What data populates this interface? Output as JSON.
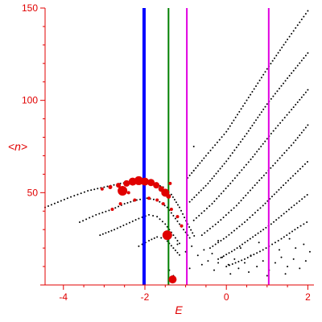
{
  "chart_data": {
    "type": "scatter",
    "xlabel": "E",
    "ylabel": "<n>",
    "xlim": [
      -4.45,
      2.15
    ],
    "ylim": [
      0,
      150
    ],
    "x_ticks": [
      -4,
      -2,
      0,
      2
    ],
    "y_ticks": [
      50,
      100,
      150
    ],
    "grid": false,
    "colors": {
      "axis": "#e00000",
      "dots": "#000000",
      "highlight": "#e00000"
    },
    "vertical_lines": [
      {
        "x": -2.02,
        "color": "#0000ff",
        "width": "thick"
      },
      {
        "x": -1.42,
        "color": "#008000",
        "width": "normal"
      },
      {
        "x": -0.97,
        "color": "#e000e0",
        "width": "normal"
      },
      {
        "x": 1.04,
        "color": "#e000e0",
        "width": "normal"
      }
    ],
    "dotted_series": [
      {
        "points": [
          [
            -4.45,
            42
          ],
          [
            -3.9,
            47
          ],
          [
            -3.4,
            51
          ],
          [
            -3.0,
            53
          ],
          [
            -2.6,
            55
          ],
          [
            -2.2,
            56
          ],
          [
            -1.85,
            55.5
          ],
          [
            -1.55,
            53
          ],
          [
            -1.35,
            49
          ],
          [
            -1.15,
            42
          ],
          [
            -0.95,
            33
          ],
          [
            -0.75,
            25
          ]
        ]
      },
      {
        "points": [
          [
            -3.6,
            34
          ],
          [
            -3.2,
            38
          ],
          [
            -2.8,
            41
          ],
          [
            -2.5,
            44
          ],
          [
            -2.2,
            46
          ],
          [
            -1.95,
            47
          ],
          [
            -1.7,
            46
          ],
          [
            -1.45,
            42
          ],
          [
            -1.25,
            36
          ],
          [
            -1.05,
            30
          ],
          [
            -0.85,
            24
          ]
        ]
      },
      {
        "points": [
          [
            -3.1,
            27
          ],
          [
            -2.75,
            30
          ],
          [
            -2.45,
            33
          ],
          [
            -2.15,
            36
          ],
          [
            -1.9,
            38
          ],
          [
            -1.7,
            37
          ],
          [
            -1.5,
            33
          ],
          [
            -1.3,
            27
          ],
          [
            -1.1,
            21
          ]
        ]
      },
      {
        "points": [
          [
            -2.15,
            21
          ],
          [
            -1.9,
            24
          ],
          [
            -1.7,
            26
          ],
          [
            -1.5,
            25
          ],
          [
            -1.3,
            20
          ],
          [
            -1.1,
            15
          ]
        ]
      },
      {
        "points": [
          [
            -0.95,
            58
          ],
          [
            -0.5,
            70
          ],
          [
            0.0,
            83
          ],
          [
            0.5,
            100
          ],
          [
            1.0,
            117
          ],
          [
            1.5,
            133
          ],
          [
            2.05,
            150
          ]
        ]
      },
      {
        "points": [
          [
            -0.9,
            45
          ],
          [
            -0.45,
            55
          ],
          [
            0.0,
            67
          ],
          [
            0.5,
            82
          ],
          [
            1.0,
            98
          ],
          [
            1.5,
            112
          ],
          [
            2.05,
            127
          ]
        ]
      },
      {
        "points": [
          [
            -0.8,
            35
          ],
          [
            -0.35,
            44
          ],
          [
            0.1,
            55
          ],
          [
            0.6,
            68
          ],
          [
            1.1,
            82
          ],
          [
            1.6,
            95
          ],
          [
            2.05,
            107
          ]
        ]
      },
      {
        "points": [
          [
            -0.6,
            27
          ],
          [
            -0.2,
            34
          ],
          [
            0.25,
            43
          ],
          [
            0.7,
            54
          ],
          [
            1.2,
            66
          ],
          [
            1.65,
            77
          ],
          [
            2.05,
            88
          ]
        ]
      },
      {
        "points": [
          [
            -0.4,
            20
          ],
          [
            0.0,
            26
          ],
          [
            0.45,
            34
          ],
          [
            0.9,
            43
          ],
          [
            1.4,
            54
          ],
          [
            2.05,
            68
          ]
        ]
      },
      {
        "points": [
          [
            -0.2,
            14
          ],
          [
            0.2,
            19
          ],
          [
            0.65,
            26
          ],
          [
            1.1,
            33
          ],
          [
            1.6,
            42
          ],
          [
            2.05,
            50
          ]
        ]
      },
      {
        "points": [
          [
            0.0,
            10
          ],
          [
            0.45,
            14
          ],
          [
            0.9,
            19
          ],
          [
            1.35,
            25
          ],
          [
            1.75,
            31
          ],
          [
            2.05,
            35
          ]
        ]
      }
    ],
    "scattered_points": [
      [
        -1.2,
        22
      ],
      [
        -1.0,
        18
      ],
      [
        -0.85,
        21
      ],
      [
        -0.7,
        16
      ],
      [
        -0.55,
        19
      ],
      [
        -0.45,
        13
      ],
      [
        -0.35,
        17
      ],
      [
        -0.2,
        12
      ],
      [
        -0.1,
        15
      ],
      [
        0.05,
        11
      ],
      [
        0.2,
        14
      ],
      [
        0.3,
        9
      ],
      [
        0.45,
        12
      ],
      [
        0.6,
        16
      ],
      [
        0.75,
        10
      ],
      [
        0.9,
        13
      ],
      [
        1.05,
        8
      ],
      [
        1.2,
        12
      ],
      [
        1.35,
        15
      ],
      [
        1.5,
        10
      ],
      [
        1.65,
        14
      ],
      [
        1.8,
        9
      ],
      [
        1.95,
        13
      ],
      [
        2.05,
        18
      ],
      [
        -0.6,
        11
      ],
      [
        -0.3,
        8
      ],
      [
        0.1,
        6
      ],
      [
        0.55,
        7
      ],
      [
        1.0,
        5
      ],
      [
        1.45,
        6
      ],
      [
        1.9,
        22
      ],
      [
        1.7,
        20
      ],
      [
        1.3,
        19
      ],
      [
        -1.4,
        8
      ],
      [
        -1.3,
        5
      ],
      [
        -0.9,
        9
      ],
      [
        0.35,
        20
      ],
      [
        0.8,
        23
      ],
      [
        -0.2,
        24
      ],
      [
        1.55,
        25
      ],
      [
        -0.8,
        75
      ],
      [
        -0.8,
        62
      ]
    ],
    "red_markers": [
      {
        "x": -3.05,
        "y": 52,
        "size": 2
      },
      {
        "x": -2.85,
        "y": 53,
        "size": 2.5
      },
      {
        "x": -2.65,
        "y": 54,
        "size": 3
      },
      {
        "x": -2.45,
        "y": 55,
        "size": 4
      },
      {
        "x": -2.3,
        "y": 56,
        "size": 5
      },
      {
        "x": -2.15,
        "y": 56.5,
        "size": 5.5
      },
      {
        "x": -2.0,
        "y": 56,
        "size": 5
      },
      {
        "x": -1.85,
        "y": 55.5,
        "size": 4.5
      },
      {
        "x": -1.72,
        "y": 54,
        "size": 4
      },
      {
        "x": -1.6,
        "y": 52,
        "size": 3.5
      },
      {
        "x": -1.5,
        "y": 50,
        "size": 5
      },
      {
        "x": -1.42,
        "y": 48,
        "size": 3
      },
      {
        "x": -1.38,
        "y": 55,
        "size": 2
      },
      {
        "x": -2.55,
        "y": 51,
        "size": 6
      },
      {
        "x": -2.4,
        "y": 50,
        "size": 2
      },
      {
        "x": -2.25,
        "y": 46,
        "size": 2
      },
      {
        "x": -2.6,
        "y": 44,
        "size": 2
      },
      {
        "x": -2.8,
        "y": 41,
        "size": 2
      },
      {
        "x": -1.9,
        "y": 47,
        "size": 2
      },
      {
        "x": -1.7,
        "y": 46,
        "size": 2
      },
      {
        "x": -1.55,
        "y": 44,
        "size": 2
      },
      {
        "x": -1.35,
        "y": 41,
        "size": 2
      },
      {
        "x": -1.2,
        "y": 37,
        "size": 2
      },
      {
        "x": -1.1,
        "y": 32,
        "size": 2
      },
      {
        "x": -1.45,
        "y": 27,
        "size": 6
      },
      {
        "x": -1.32,
        "y": 3,
        "size": 5
      }
    ]
  }
}
